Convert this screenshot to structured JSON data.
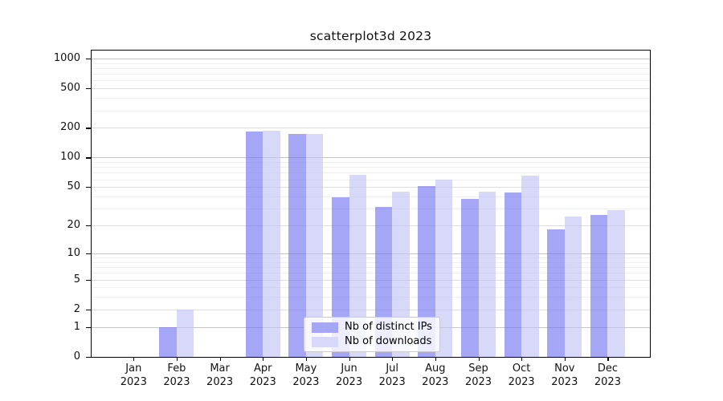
{
  "chart_data": {
    "type": "bar",
    "title": "scatterplot3d 2023",
    "categories": [
      "Jan 2023",
      "Feb 2023",
      "Mar 2023",
      "Apr 2023",
      "May 2023",
      "Jun 2023",
      "Jul 2023",
      "Aug 2023",
      "Sep 2023",
      "Oct 2023",
      "Nov 2023",
      "Dec 2023"
    ],
    "series": [
      {
        "name": "Nb of distinct IPs",
        "key": "distinct-ips",
        "color": "#a6a6f6",
        "color_rgba": "rgba(112,112,242,0.62)",
        "values": [
          0,
          1,
          0,
          185,
          174,
          39,
          31,
          51,
          38,
          44,
          18,
          26
        ]
      },
      {
        "name": "Nb of downloads",
        "key": "downloads",
        "color": "#d8d8f9",
        "color_rgba": "rgba(192,192,245,0.62)",
        "values": [
          0,
          2,
          0,
          186,
          175,
          67,
          45,
          60,
          45,
          65,
          25,
          29
        ]
      }
    ],
    "xlabel": "",
    "ylabel": "",
    "y_axis": {
      "scale": "log1p",
      "ticks": [
        0,
        1,
        2,
        5,
        10,
        20,
        50,
        100,
        200,
        500,
        1000
      ],
      "top_value": 1250
    },
    "grid": "horizontal major + minor log lines",
    "legend": {
      "position": "lower center",
      "entries": [
        "Nb of distinct IPs",
        "Nb of downloads"
      ]
    }
  },
  "colors": {
    "background": "#ffffff",
    "spine": "#000000",
    "tick_label": "#111111",
    "grid_major": "#c5c5c5",
    "grid_mid": "#dddddd",
    "grid_minor": "#efefef",
    "legend_border": "#cccccc",
    "legend_background": "rgba(255,255,255,0.8)"
  }
}
